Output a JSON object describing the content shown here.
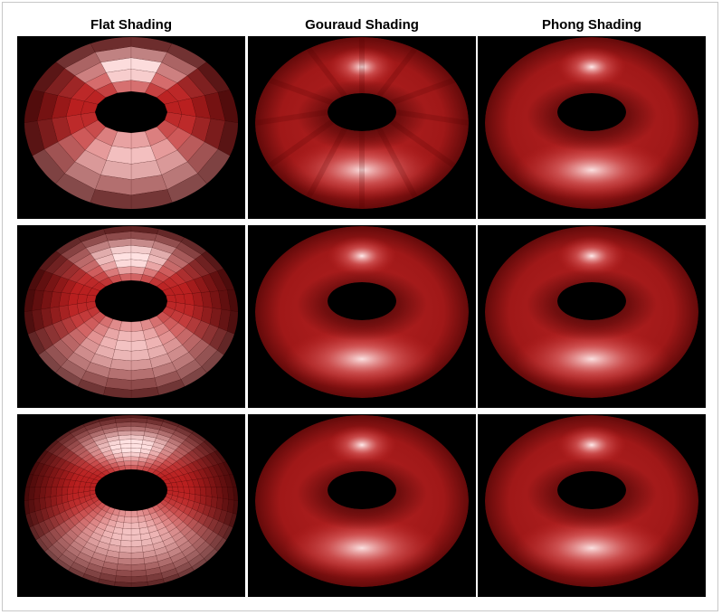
{
  "columns": [
    {
      "title": "Flat Shading",
      "type": "flat"
    },
    {
      "title": "Gouraud Shading",
      "type": "gouraud"
    },
    {
      "title": "Phong Shading",
      "type": "phong"
    }
  ],
  "rows": [
    {
      "flat_segments": 16
    },
    {
      "flat_segments": 24
    },
    {
      "flat_segments": 40
    }
  ],
  "colors": {
    "background": "#000000",
    "surface_dark": "#3a0000",
    "surface_mid": "#a31a1a",
    "surface_base": "#c83232",
    "highlight": "#ffe6e6"
  }
}
